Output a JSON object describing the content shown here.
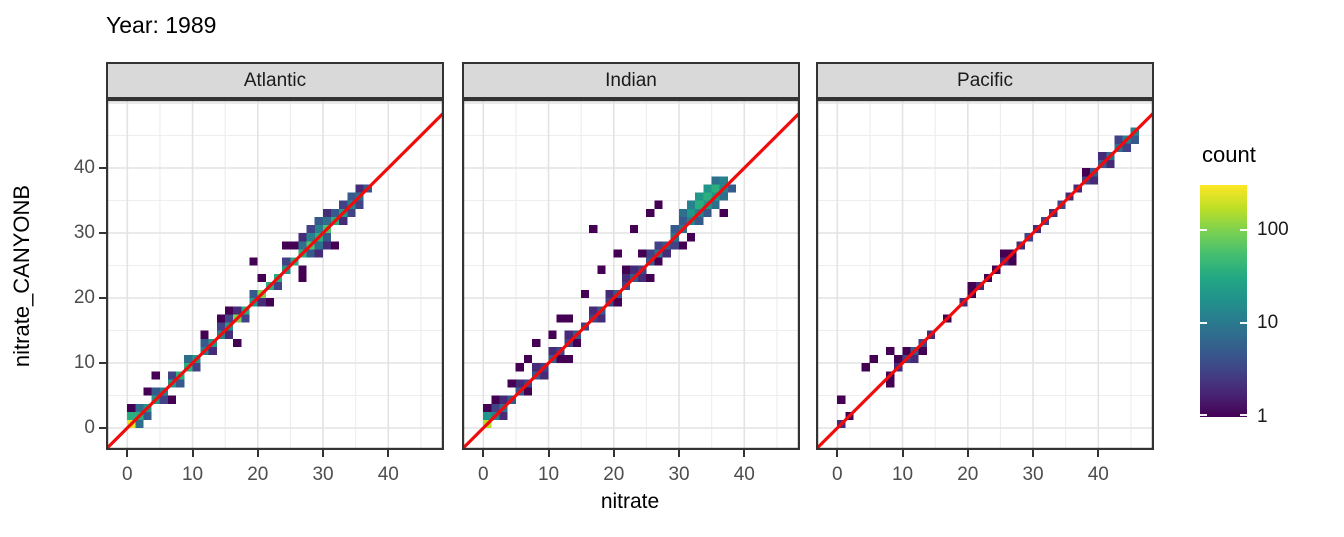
{
  "title": "Year: 1989",
  "axes": {
    "x_label": "nitrate",
    "y_label": "nitrate_CANYONB",
    "x_ticks": [
      0,
      10,
      20,
      30,
      40
    ],
    "y_ticks": [
      0,
      10,
      20,
      30,
      40
    ],
    "minor_ticks": [
      5,
      15,
      25,
      35,
      45,
      50
    ]
  },
  "legend": {
    "title": "count",
    "ticks": [
      100,
      10,
      1
    ],
    "min_count": 1,
    "max_count": 300,
    "scale": "log10",
    "viridis_stops": [
      [
        0.0,
        "#440154"
      ],
      [
        0.1,
        "#482475"
      ],
      [
        0.2,
        "#414487"
      ],
      [
        0.3,
        "#355f8d"
      ],
      [
        0.4,
        "#2a788e"
      ],
      [
        0.5,
        "#21918c"
      ],
      [
        0.6,
        "#22a884"
      ],
      [
        0.7,
        "#44bf70"
      ],
      [
        0.8,
        "#7ad151"
      ],
      [
        0.9,
        "#bddf26"
      ],
      [
        1.0,
        "#fde725"
      ]
    ]
  },
  "colors": {
    "identity_line": "#f10c0c",
    "strip_bg": "#d9d9d9",
    "panel_border": "#333333",
    "grid_major": "#e3e3e3",
    "grid_minor": "#eeeeee",
    "tick_text": "#4d4d4d",
    "text": "#000000",
    "panel_bg": "#ffffff"
  },
  "chart_data": {
    "type": "heatmap",
    "subtype": "geom_bin2d faceted scatter of binned counts",
    "title": "Year: 1989",
    "xlabel": "nitrate",
    "ylabel": "nitrate_CANYONB",
    "x_range": [
      -3.3,
      48.6
    ],
    "y_range": [
      -3.4,
      50.6
    ],
    "bin_size": 1.25,
    "grid": true,
    "legend_position": "right",
    "identity_line": {
      "slope": 1,
      "intercept": 0,
      "color": "#f10c0c"
    },
    "facets": [
      {
        "name": "Atlantic",
        "bins": [
          [
            0.6,
            0.6,
            250
          ],
          [
            1.85,
            1.85,
            35
          ],
          [
            3.1,
            3.1,
            20
          ],
          [
            4.35,
            4.35,
            20
          ],
          [
            5.6,
            5.6,
            12
          ],
          [
            6.85,
            6.85,
            20
          ],
          [
            8.1,
            8.1,
            35
          ],
          [
            9.35,
            9.35,
            35
          ],
          [
            10.6,
            10.6,
            20
          ],
          [
            11.85,
            11.85,
            12
          ],
          [
            13.1,
            13.1,
            20
          ],
          [
            14.35,
            14.35,
            12
          ],
          [
            15.6,
            15.6,
            20
          ],
          [
            16.85,
            16.85,
            100
          ],
          [
            18.1,
            18.1,
            35
          ],
          [
            19.35,
            19.35,
            20
          ],
          [
            20.6,
            20.6,
            100
          ],
          [
            21.85,
            21.85,
            35
          ],
          [
            23.1,
            23.1,
            35
          ],
          [
            24.35,
            24.35,
            20
          ],
          [
            25.6,
            25.6,
            35
          ],
          [
            26.85,
            26.85,
            35
          ],
          [
            28.1,
            28.1,
            60
          ],
          [
            29.35,
            29.35,
            35
          ],
          [
            30.6,
            30.6,
            60
          ],
          [
            31.85,
            31.85,
            35
          ],
          [
            33.1,
            33.1,
            20
          ],
          [
            34.35,
            34.35,
            12
          ],
          [
            35.6,
            35.6,
            8
          ],
          [
            36.85,
            36.85,
            5
          ],
          [
            0.6,
            1.85,
            35
          ],
          [
            1.85,
            3.1,
            8
          ],
          [
            4.35,
            5.6,
            5
          ],
          [
            6.85,
            8.1,
            3
          ],
          [
            9.35,
            10.6,
            8
          ],
          [
            11.85,
            13.1,
            5
          ],
          [
            14.35,
            15.6,
            3
          ],
          [
            19.35,
            20.6,
            5
          ],
          [
            24.35,
            25.6,
            3
          ],
          [
            26.85,
            28.1,
            8
          ],
          [
            28.1,
            29.35,
            12
          ],
          [
            29.35,
            30.6,
            12
          ],
          [
            30.6,
            31.85,
            8
          ],
          [
            31.85,
            33.1,
            5
          ],
          [
            33.1,
            34.35,
            3
          ],
          [
            34.35,
            35.6,
            5
          ],
          [
            35.6,
            36.85,
            2
          ],
          [
            1.85,
            0.6,
            8
          ],
          [
            3.1,
            1.85,
            5
          ],
          [
            5.6,
            4.35,
            3
          ],
          [
            8.1,
            6.85,
            5
          ],
          [
            10.6,
            9.35,
            3
          ],
          [
            13.1,
            11.85,
            2
          ],
          [
            15.6,
            14.35,
            2
          ],
          [
            18.1,
            16.85,
            3
          ],
          [
            20.6,
            19.35,
            2
          ],
          [
            23.1,
            21.85,
            3
          ],
          [
            28.1,
            26.85,
            5
          ],
          [
            29.35,
            28.1,
            8
          ],
          [
            30.6,
            29.35,
            5
          ],
          [
            33.1,
            31.85,
            2
          ],
          [
            34.35,
            33.1,
            3
          ],
          [
            26.85,
            29.35,
            2
          ],
          [
            28.1,
            30.6,
            3
          ],
          [
            29.35,
            31.85,
            5
          ],
          [
            30.6,
            33.1,
            2
          ],
          [
            14.35,
            16.85,
            1
          ],
          [
            15.6,
            16.85,
            3
          ],
          [
            15.6,
            18.1,
            1
          ],
          [
            16.85,
            18.1,
            2
          ],
          [
            0.6,
            3.1,
            1
          ],
          [
            3.1,
            5.6,
            1
          ],
          [
            4.35,
            8.1,
            1
          ],
          [
            6.85,
            4.35,
            1
          ],
          [
            16.85,
            13.1,
            1
          ],
          [
            21.85,
            19.35,
            1
          ],
          [
            25.6,
            28.1,
            1
          ],
          [
            24.35,
            28.1,
            1
          ],
          [
            26.85,
            24.35,
            1
          ],
          [
            26.85,
            23.1,
            1
          ],
          [
            31.85,
            28.1,
            1
          ],
          [
            20.6,
            23.1,
            1
          ],
          [
            11.85,
            14.35,
            1
          ],
          [
            19.35,
            25.6,
            1
          ],
          [
            29.35,
            26.85,
            2
          ],
          [
            30.6,
            28.1,
            2
          ],
          [
            35.6,
            34.35,
            3
          ]
        ]
      },
      {
        "name": "Indian",
        "bins": [
          [
            0.6,
            0.6,
            160
          ],
          [
            1.85,
            1.85,
            12
          ],
          [
            3.1,
            3.1,
            8
          ],
          [
            4.35,
            4.35,
            5
          ],
          [
            5.6,
            5.6,
            5
          ],
          [
            6.85,
            6.85,
            3
          ],
          [
            8.1,
            8.1,
            5
          ],
          [
            9.35,
            9.35,
            3
          ],
          [
            10.6,
            10.6,
            5
          ],
          [
            11.85,
            11.85,
            3
          ],
          [
            13.1,
            13.1,
            3
          ],
          [
            14.35,
            14.35,
            5
          ],
          [
            15.6,
            15.6,
            3
          ],
          [
            16.85,
            16.85,
            3
          ],
          [
            18.1,
            18.1,
            5
          ],
          [
            19.35,
            19.35,
            3
          ],
          [
            20.6,
            20.6,
            5
          ],
          [
            21.85,
            21.85,
            3
          ],
          [
            23.1,
            23.1,
            5
          ],
          [
            24.35,
            24.35,
            3
          ],
          [
            25.6,
            25.6,
            5
          ],
          [
            26.85,
            26.85,
            8
          ],
          [
            28.1,
            28.1,
            5
          ],
          [
            29.35,
            29.35,
            8
          ],
          [
            30.6,
            30.6,
            8
          ],
          [
            31.85,
            31.85,
            12
          ],
          [
            33.1,
            33.1,
            12
          ],
          [
            34.35,
            34.35,
            20
          ],
          [
            35.6,
            35.6,
            20
          ],
          [
            36.85,
            36.85,
            12
          ],
          [
            0.6,
            1.85,
            20
          ],
          [
            1.85,
            3.1,
            3
          ],
          [
            3.1,
            4.35,
            2
          ],
          [
            5.6,
            6.85,
            2
          ],
          [
            8.1,
            9.35,
            2
          ],
          [
            10.6,
            11.85,
            2
          ],
          [
            13.1,
            14.35,
            2
          ],
          [
            16.85,
            18.1,
            2
          ],
          [
            19.35,
            20.6,
            2
          ],
          [
            21.85,
            23.1,
            2
          ],
          [
            23.1,
            24.35,
            2
          ],
          [
            25.6,
            26.85,
            3
          ],
          [
            26.85,
            28.1,
            3
          ],
          [
            29.35,
            30.6,
            5
          ],
          [
            30.6,
            31.85,
            5
          ],
          [
            31.85,
            33.1,
            20
          ],
          [
            33.1,
            34.35,
            35
          ],
          [
            34.35,
            35.6,
            35
          ],
          [
            35.6,
            36.85,
            35
          ],
          [
            36.85,
            38.1,
            12
          ],
          [
            30.6,
            33.1,
            8
          ],
          [
            31.85,
            34.35,
            12
          ],
          [
            33.1,
            35.6,
            20
          ],
          [
            34.35,
            36.85,
            20
          ],
          [
            35.6,
            38.1,
            8
          ],
          [
            3.1,
            1.85,
            2
          ],
          [
            6.85,
            5.6,
            1
          ],
          [
            9.35,
            8.1,
            2
          ],
          [
            11.85,
            10.6,
            1
          ],
          [
            14.35,
            13.1,
            1
          ],
          [
            18.1,
            16.85,
            2
          ],
          [
            20.6,
            19.35,
            1
          ],
          [
            24.35,
            23.1,
            2
          ],
          [
            28.1,
            26.85,
            2
          ],
          [
            29.35,
            28.1,
            3
          ],
          [
            33.1,
            31.85,
            5
          ],
          [
            34.35,
            33.1,
            5
          ],
          [
            35.6,
            34.35,
            8
          ],
          [
            36.85,
            35.6,
            8
          ],
          [
            38.1,
            36.85,
            5
          ],
          [
            0.6,
            3.1,
            1
          ],
          [
            1.85,
            4.35,
            1
          ],
          [
            4.35,
            6.85,
            1
          ],
          [
            5.6,
            9.35,
            1
          ],
          [
            6.85,
            10.6,
            1
          ],
          [
            8.1,
            13.1,
            1
          ],
          [
            10.6,
            14.35,
            1
          ],
          [
            11.85,
            16.85,
            1
          ],
          [
            13.1,
            16.85,
            1
          ],
          [
            15.6,
            20.6,
            1
          ],
          [
            16.85,
            30.6,
            1
          ],
          [
            18.1,
            24.35,
            1
          ],
          [
            20.6,
            26.85,
            1
          ],
          [
            21.85,
            24.35,
            1
          ],
          [
            23.1,
            30.6,
            1
          ],
          [
            24.35,
            26.85,
            1
          ],
          [
            25.6,
            33.1,
            1
          ],
          [
            26.85,
            34.35,
            1
          ],
          [
            26.85,
            25.6,
            1
          ],
          [
            30.6,
            28.1,
            1
          ],
          [
            36.85,
            33.1,
            1
          ],
          [
            13.1,
            10.6,
            1
          ],
          [
            25.6,
            23.1,
            1
          ],
          [
            31.85,
            29.35,
            1
          ]
        ]
      },
      {
        "name": "Pacific",
        "bins": [
          [
            0.6,
            0.6,
            2
          ],
          [
            1.85,
            1.85,
            1
          ],
          [
            0.6,
            4.35,
            1
          ],
          [
            4.35,
            9.35,
            1
          ],
          [
            5.6,
            10.6,
            1
          ],
          [
            8.1,
            6.85,
            1
          ],
          [
            8.1,
            8.1,
            1
          ],
          [
            8.1,
            11.85,
            1
          ],
          [
            9.35,
            9.35,
            2
          ],
          [
            9.35,
            10.6,
            1
          ],
          [
            10.6,
            10.6,
            3
          ],
          [
            10.6,
            11.85,
            1
          ],
          [
            11.85,
            11.85,
            5
          ],
          [
            11.85,
            10.6,
            2
          ],
          [
            13.1,
            13.1,
            3
          ],
          [
            13.1,
            11.85,
            1
          ],
          [
            14.35,
            14.35,
            2
          ],
          [
            16.85,
            16.85,
            1
          ],
          [
            19.35,
            19.35,
            2
          ],
          [
            20.6,
            20.6,
            1
          ],
          [
            20.6,
            21.85,
            1
          ],
          [
            21.85,
            21.85,
            2
          ],
          [
            23.1,
            23.1,
            1
          ],
          [
            24.35,
            24.35,
            1
          ],
          [
            25.6,
            25.6,
            2
          ],
          [
            25.6,
            26.85,
            1
          ],
          [
            26.85,
            26.85,
            1
          ],
          [
            26.85,
            25.6,
            1
          ],
          [
            28.1,
            28.1,
            2
          ],
          [
            29.35,
            29.35,
            3
          ],
          [
            30.6,
            30.6,
            2
          ],
          [
            31.85,
            31.85,
            3
          ],
          [
            33.1,
            33.1,
            2
          ],
          [
            34.35,
            34.35,
            3
          ],
          [
            35.6,
            35.6,
            2
          ],
          [
            36.85,
            36.85,
            2
          ],
          [
            38.1,
            38.1,
            3
          ],
          [
            38.1,
            39.35,
            1
          ],
          [
            39.35,
            39.35,
            5
          ],
          [
            39.35,
            38.1,
            2
          ],
          [
            40.6,
            40.6,
            5
          ],
          [
            40.6,
            41.85,
            2
          ],
          [
            41.85,
            41.85,
            8
          ],
          [
            41.85,
            40.6,
            2
          ],
          [
            43.1,
            43.1,
            8
          ],
          [
            43.1,
            44.35,
            3
          ],
          [
            44.35,
            44.35,
            12
          ],
          [
            44.35,
            43.1,
            3
          ],
          [
            45.6,
            45.6,
            12
          ],
          [
            45.6,
            44.35,
            5
          ]
        ]
      }
    ]
  }
}
